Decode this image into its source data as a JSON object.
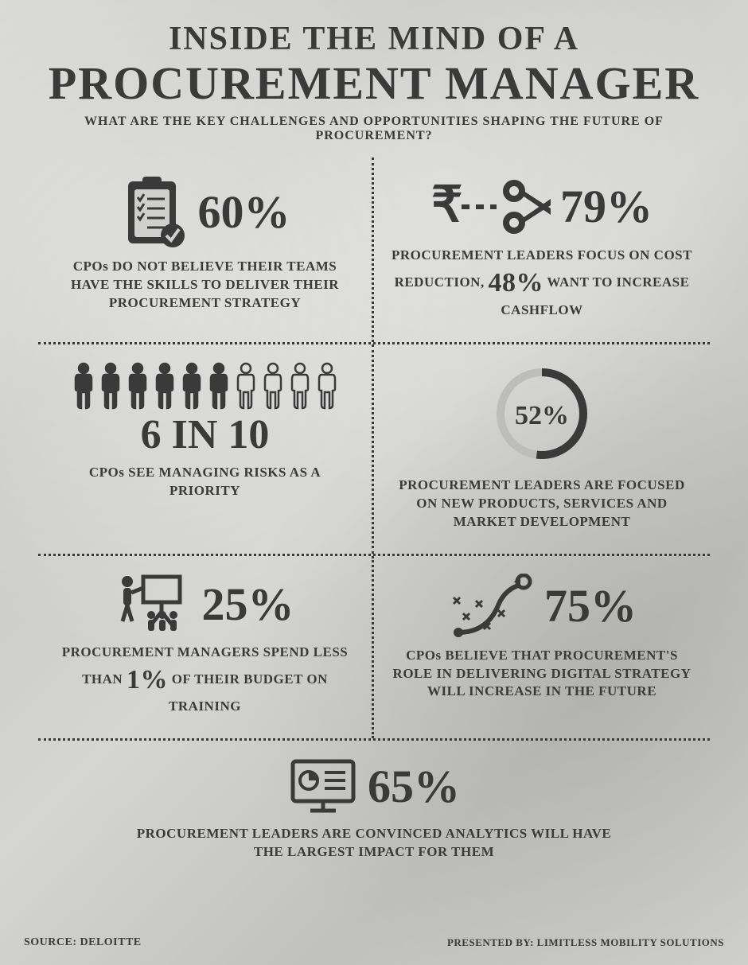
{
  "header": {
    "line1": "INSIDE THE MIND OF A",
    "line2": "PROCUREMENT MANAGER",
    "subtitle": "WHAT ARE THE KEY CHALLENGES AND OPPORTUNITIES SHAPING THE FUTURE OF PROCUREMENT?"
  },
  "colors": {
    "text": "#3a3a3a",
    "icon": "#3a3a3a",
    "person_outline": "#3a3a3a",
    "ring_bg": "#bdbdbb"
  },
  "stats": {
    "skills": {
      "value": "60%",
      "desc_pre": "CPOs DO NOT BELIEVE THEIR TEAMS HAVE THE SKILLS TO DELIVER THEIR PROCUREMENT STRATEGY"
    },
    "cost": {
      "value": "79%",
      "desc_pre": "PROCUREMENT LEADERS FOCUS ON COST REDUCTION, ",
      "inline": "48%",
      "desc_post": " WANT TO INCREASE CASHFLOW"
    },
    "risk": {
      "value": "6 IN 10",
      "filled": 6,
      "total": 10,
      "desc": "CPOs SEE MANAGING RISKS AS A PRIORITY"
    },
    "newprod": {
      "value": "52%",
      "ring_percent": 52,
      "desc": "PROCUREMENT LEADERS ARE FOCUSED ON NEW PRODUCTS, SERVICES AND MARKET DEVELOPMENT"
    },
    "training": {
      "value": "25%",
      "desc_pre": "PROCUREMENT MANAGERS SPEND LESS THAN ",
      "inline": "1%",
      "desc_post": " OF THEIR BUDGET ON TRAINING"
    },
    "digital": {
      "value": "75%",
      "desc": "CPOs BELIEVE THAT PROCUREMENT'S ROLE IN DELIVERING DIGITAL STRATEGY WILL INCREASE IN THE FUTURE"
    },
    "analytics": {
      "value": "65%",
      "desc": "PROCUREMENT LEADERS ARE CONVINCED ANALYTICS WILL HAVE THE LARGEST IMPACT FOR THEM"
    }
  },
  "footer": {
    "source": "SOURCE: DELOITTE",
    "presented": "PRESENTED BY: LIMITLESS MOBILITY SOLUTIONS"
  }
}
